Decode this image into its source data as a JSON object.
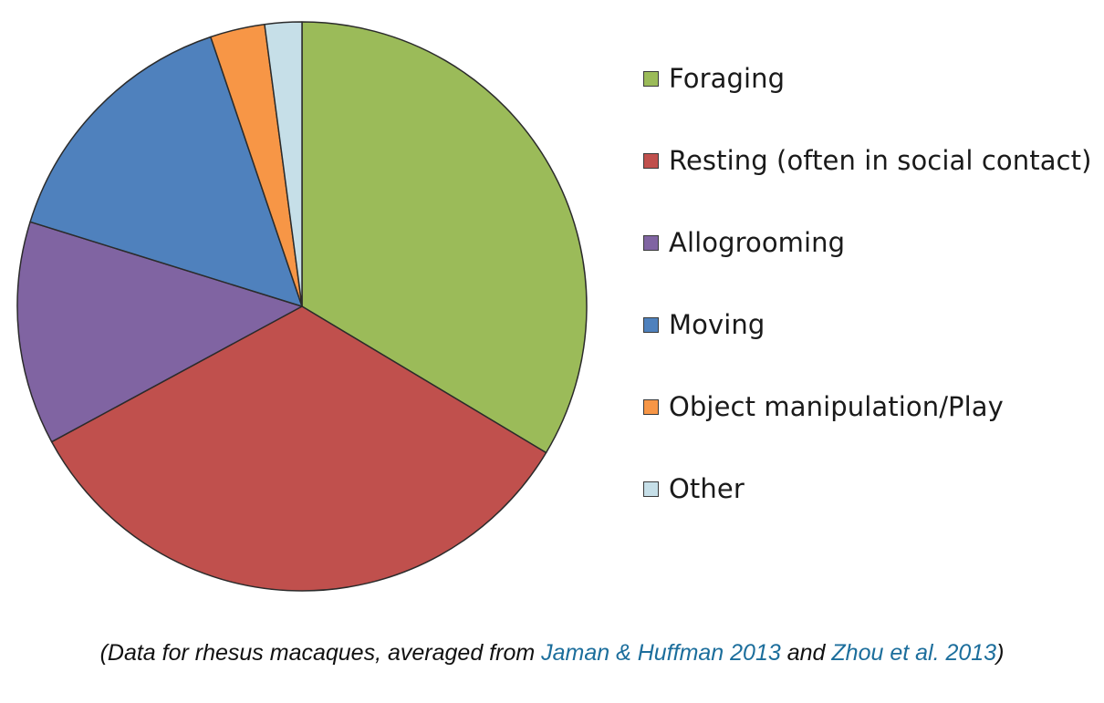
{
  "chart_data": {
    "type": "pie",
    "slices": [
      {
        "label": "Foraging",
        "value": 33.6,
        "color": "#9bbb59"
      },
      {
        "label": "Resting (often in social contact)",
        "value": 33.5,
        "color": "#c0504d"
      },
      {
        "label": "Allogrooming",
        "value": 12.7,
        "color": "#8064a2"
      },
      {
        "label": "Moving",
        "value": 15.0,
        "color": "#4f81bd"
      },
      {
        "label": "Object manipulation/Play",
        "value": 3.1,
        "color": "#f79646"
      },
      {
        "label": "Other",
        "value": 2.1,
        "color": "#c6dfe8"
      }
    ],
    "legend_position": "right"
  },
  "caption": {
    "prefix": "(Data for rhesus macaques, averaged from ",
    "link1": "Jaman & Huffman 2013",
    "middle": " and ",
    "link2": "Zhou et al. 2013",
    "suffix": ")",
    "link_color": "#1c6e9c"
  }
}
